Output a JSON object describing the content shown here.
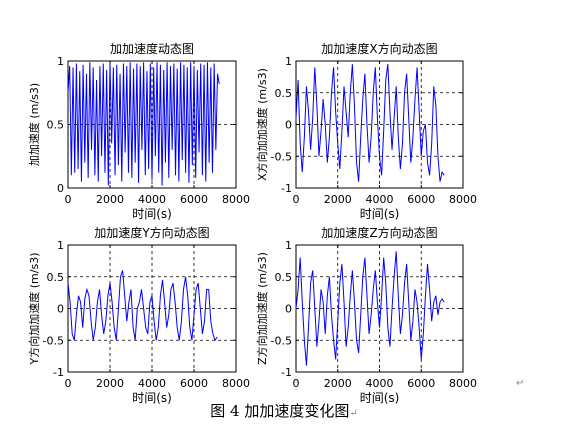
{
  "caption": "图 4  加加速度变化图",
  "caption_mark": "↵",
  "paragraph_mark": "↵",
  "chart_data": [
    {
      "type": "line",
      "title": "加加速度动态图",
      "xlabel": "时间(s)",
      "ylabel": "加加速度 (m/s3)",
      "xlim": [
        0,
        8000
      ],
      "ylim": [
        0,
        1
      ],
      "xticks": [
        0,
        2000,
        4000,
        6000,
        8000
      ],
      "yticks": [
        0,
        0.5,
        1
      ],
      "grid": true,
      "color": "#0000ff",
      "series": [
        {
          "x": [
            0,
            80,
            160,
            240,
            320,
            400,
            480,
            560,
            640,
            720,
            800,
            880,
            960,
            1040,
            1120,
            1200,
            1280,
            1360,
            1440,
            1520,
            1600,
            1680,
            1760,
            1840,
            1920,
            2000,
            2080,
            2160,
            2240,
            2320,
            2400,
            2480,
            2560,
            2640,
            2720,
            2800,
            2880,
            2960,
            3040,
            3120,
            3200,
            3280,
            3360,
            3440,
            3520,
            3600,
            3680,
            3760,
            3840,
            3920,
            4000,
            4080,
            4160,
            4240,
            4320,
            4400,
            4480,
            4560,
            4640,
            4720,
            4800,
            4880,
            4960,
            5040,
            5120,
            5200,
            5280,
            5360,
            5440,
            5520,
            5600,
            5680,
            5760,
            5840,
            5920,
            6000,
            6080,
            6160,
            6240,
            6320,
            6400,
            6480,
            6560,
            6640,
            6720,
            6800,
            6880,
            6960,
            7040,
            7120,
            7200
          ],
          "y": [
            0.75,
            0.96,
            0.1,
            0.95,
            0.12,
            0.98,
            0.15,
            0.92,
            0.05,
            0.97,
            0.2,
            0.9,
            0.08,
            0.99,
            0.3,
            0.95,
            0.1,
            0.85,
            0.05,
            0.96,
            0.25,
            0.98,
            0.12,
            0.93,
            0.02,
            0.99,
            0.35,
            0.95,
            0.1,
            0.97,
            0.18,
            0.9,
            0.05,
            0.98,
            0.28,
            0.96,
            0.12,
            0.99,
            0.08,
            0.94,
            0.2,
            0.98,
            0.04,
            0.96,
            0.3,
            0.99,
            0.1,
            0.92,
            0.15,
            0.98,
            0.06,
            0.95,
            0.25,
            0.99,
            0.12,
            0.97,
            0.02,
            0.93,
            0.2,
            0.99,
            0.08,
            0.96,
            0.3,
            0.98,
            0.1,
            0.94,
            0.05,
            0.99,
            0.22,
            0.97,
            0.12,
            0.95,
            0.04,
            0.99,
            0.18,
            0.96,
            0.08,
            0.93,
            0.28,
            0.98,
            0.1,
            0.97,
            0.05,
            0.99,
            0.2,
            0.95,
            0.12,
            0.98,
            0.3,
            0.9,
            0.82
          ]
        }
      ]
    },
    {
      "type": "line",
      "title": "加加速度X方向动态图",
      "xlabel": "时间(s)",
      "ylabel": "X方向加加速度 (m/s3)",
      "xlim": [
        0,
        8000
      ],
      "ylim": [
        -1,
        1
      ],
      "xticks": [
        0,
        2000,
        4000,
        6000,
        8000
      ],
      "yticks": [
        -1,
        -0.5,
        0,
        0.5,
        1
      ],
      "grid": true,
      "color": "#0000ff",
      "series": [
        {
          "x": [
            0,
            100,
            200,
            300,
            400,
            500,
            600,
            700,
            800,
            900,
            1000,
            1100,
            1200,
            1300,
            1400,
            1500,
            1600,
            1700,
            1800,
            1900,
            2000,
            2100,
            2200,
            2300,
            2400,
            2500,
            2600,
            2700,
            2800,
            2900,
            3000,
            3100,
            3200,
            3300,
            3400,
            3500,
            3600,
            3700,
            3800,
            3900,
            4000,
            4100,
            4200,
            4300,
            4400,
            4500,
            4600,
            4700,
            4800,
            4900,
            5000,
            5100,
            5200,
            5300,
            5400,
            5500,
            5600,
            5700,
            5800,
            5900,
            6000,
            6100,
            6200,
            6300,
            6400,
            6500,
            6600,
            6700,
            6800,
            6900,
            7000,
            7100
          ],
          "y": [
            0.1,
            0.7,
            -0.3,
            -0.75,
            -0.2,
            0.6,
            0.2,
            -0.4,
            0.1,
            0.9,
            0.3,
            -0.5,
            -0.1,
            0.4,
            0.0,
            -0.6,
            -0.2,
            0.5,
            0.9,
            0.2,
            -0.3,
            -0.7,
            -0.1,
            0.6,
            0.2,
            -0.2,
            0.5,
            0.95,
            0.3,
            -0.6,
            -0.9,
            -0.2,
            0.4,
            0.8,
            0.0,
            -0.6,
            -0.2,
            0.5,
            0.9,
            0.1,
            -0.5,
            -0.8,
            -0.1,
            0.7,
            0.95,
            0.2,
            -0.4,
            0.1,
            0.6,
            -0.2,
            -0.7,
            -0.3,
            0.5,
            0.8,
            0.1,
            -0.6,
            -0.2,
            0.4,
            0.9,
            0.2,
            -0.5,
            -0.1,
            0.0,
            -0.6,
            -0.8,
            -0.3,
            0.6,
            0.3,
            -0.5,
            -0.9,
            -0.75,
            -0.8
          ]
        }
      ]
    },
    {
      "type": "line",
      "title": "加加速度Y方向动态图",
      "xlabel": "时间(s)",
      "ylabel": "Y方向加加速度 (m/s3)",
      "xlim": [
        0,
        8000
      ],
      "ylim": [
        -1,
        1
      ],
      "xticks": [
        0,
        2000,
        4000,
        6000,
        8000
      ],
      "yticks": [
        -1,
        -0.5,
        0,
        0.5,
        1
      ],
      "grid": true,
      "color": "#0000ff",
      "series": [
        {
          "x": [
            0,
            100,
            200,
            300,
            400,
            500,
            600,
            700,
            800,
            900,
            1000,
            1100,
            1200,
            1300,
            1400,
            1500,
            1600,
            1700,
            1800,
            1900,
            2000,
            2100,
            2200,
            2300,
            2400,
            2500,
            2600,
            2700,
            2800,
            2900,
            3000,
            3100,
            3200,
            3300,
            3400,
            3500,
            3600,
            3700,
            3800,
            3900,
            4000,
            4100,
            4200,
            4300,
            4400,
            4500,
            4600,
            4700,
            4800,
            4900,
            5000,
            5100,
            5200,
            5300,
            5400,
            5500,
            5600,
            5700,
            5800,
            5900,
            6000,
            6100,
            6200,
            6300,
            6400,
            6500,
            6600,
            6700,
            6800,
            6900,
            7000,
            7100
          ],
          "y": [
            0.4,
            0.1,
            -0.4,
            -0.5,
            -0.1,
            0.2,
            0.1,
            -0.3,
            0.15,
            0.3,
            0.2,
            -0.2,
            -0.5,
            -0.3,
            0.1,
            0.3,
            -0.1,
            -0.4,
            -0.2,
            0.2,
            0.4,
            0.1,
            -0.3,
            -0.5,
            0.0,
            0.5,
            0.6,
            0.2,
            -0.2,
            0.1,
            0.3,
            -0.3,
            -0.5,
            0.0,
            0.1,
            0.3,
            0.0,
            -0.3,
            -0.4,
            0.1,
            0.2,
            -0.2,
            -0.5,
            -0.3,
            0.2,
            0.45,
            0.1,
            -0.3,
            -0.1,
            0.3,
            0.4,
            0.1,
            -0.3,
            -0.5,
            -0.2,
            0.3,
            0.5,
            0.2,
            -0.3,
            -0.5,
            -0.1,
            0.3,
            0.4,
            0.0,
            -0.4,
            -0.2,
            0.3,
            0.3,
            -0.2,
            -0.4,
            -0.5,
            -0.45
          ]
        }
      ]
    },
    {
      "type": "line",
      "title": "加加速度Z方向动态图",
      "xlabel": "时间(s)",
      "ylabel": "Z方向加加速度 (m/s3)",
      "xlim": [
        0,
        8000
      ],
      "ylim": [
        -1,
        1
      ],
      "xticks": [
        0,
        2000,
        4000,
        6000,
        8000
      ],
      "yticks": [
        -1,
        -0.5,
        0,
        0.5,
        1
      ],
      "grid": true,
      "color": "#0000ff",
      "series": [
        {
          "x": [
            0,
            100,
            200,
            300,
            400,
            500,
            600,
            700,
            800,
            900,
            1000,
            1100,
            1200,
            1300,
            1400,
            1500,
            1600,
            1700,
            1800,
            1900,
            2000,
            2100,
            2200,
            2300,
            2400,
            2500,
            2600,
            2700,
            2800,
            2900,
            3000,
            3100,
            3200,
            3300,
            3400,
            3500,
            3600,
            3700,
            3800,
            3900,
            4000,
            4100,
            4200,
            4300,
            4400,
            4500,
            4600,
            4700,
            4800,
            4900,
            5000,
            5100,
            5200,
            5300,
            5400,
            5500,
            5600,
            5700,
            5800,
            5900,
            6000,
            6100,
            6200,
            6300,
            6400,
            6500,
            6600,
            6700,
            6800,
            6900,
            7000,
            7100
          ],
          "y": [
            0.0,
            0.3,
            0.8,
            0.1,
            -0.5,
            -0.9,
            -0.3,
            0.4,
            0.6,
            0.0,
            -0.6,
            -0.2,
            0.3,
            0.1,
            -0.4,
            0.2,
            0.5,
            -0.1,
            -0.5,
            -0.8,
            -0.2,
            0.4,
            0.7,
            0.1,
            -0.6,
            -0.3,
            0.2,
            0.6,
            0.1,
            -0.5,
            -0.7,
            -0.1,
            0.5,
            0.8,
            0.2,
            -0.4,
            -0.1,
            0.3,
            0.6,
            0.1,
            -0.3,
            0.2,
            0.8,
            0.4,
            -0.3,
            -0.6,
            0.0,
            0.5,
            0.9,
            0.2,
            -0.4,
            -0.1,
            0.4,
            0.7,
            0.1,
            -0.5,
            -0.2,
            0.3,
            0.1,
            -0.3,
            -0.8,
            -0.4,
            0.2,
            0.7,
            0.3,
            -0.2,
            0.1,
            0.2,
            -0.1,
            0.1,
            0.15,
            0.1
          ]
        }
      ]
    }
  ]
}
